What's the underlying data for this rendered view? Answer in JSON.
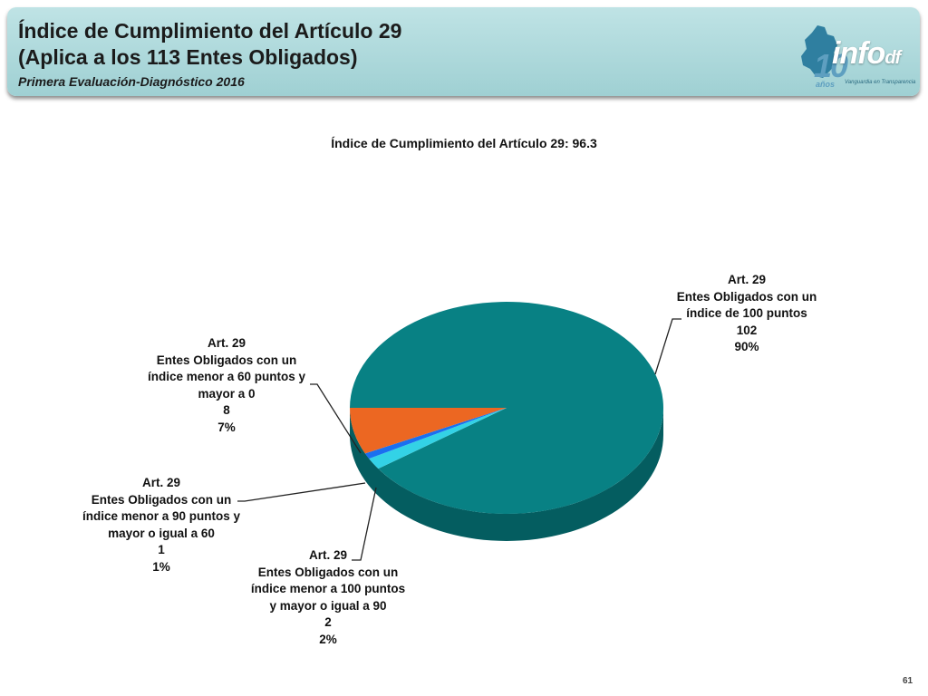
{
  "header": {
    "title_line1": "Índice de Cumplimiento del Artículo 29",
    "title_line2": "(Aplica a los 113 Entes Obligados)",
    "subtitle": "Primera Evaluación-Diagnóstico 2016",
    "logo": {
      "number": "10",
      "years": "años",
      "brand": "info",
      "brand_suffix": "df",
      "tagline": "Vanguardia en Transparencia"
    }
  },
  "chart_data": {
    "type": "pie",
    "title": "Índice de Cumplimiento del Artículo 29: 96.3",
    "slices": [
      {
        "lines": [
          "Art. 29",
          "Entes Obligados con un",
          "índice de 100 puntos",
          "102",
          "90%"
        ],
        "value": 102,
        "percent": 90,
        "color": "#088184"
      },
      {
        "lines": [
          "Art. 29",
          "Entes Obligados con un",
          "índice  menor a 100 puntos",
          "y mayor o igual a 90",
          "2",
          "2%"
        ],
        "value": 2,
        "percent": 2,
        "color": "#33d2e6"
      },
      {
        "lines": [
          "Art. 29",
          "Entes Obligados con un",
          "índice menor a 90 puntos y",
          "mayor o igual a 60",
          "1",
          "1%"
        ],
        "value": 1,
        "percent": 1,
        "color": "#1a6ff0"
      },
      {
        "lines": [
          "Art. 29",
          "Entes Obligados con un",
          "índice menor a 60 puntos y",
          "mayor a 0",
          "8",
          "7%"
        ],
        "value": 8,
        "percent": 7,
        "color": "#ec6722"
      }
    ]
  },
  "page_number": "61"
}
